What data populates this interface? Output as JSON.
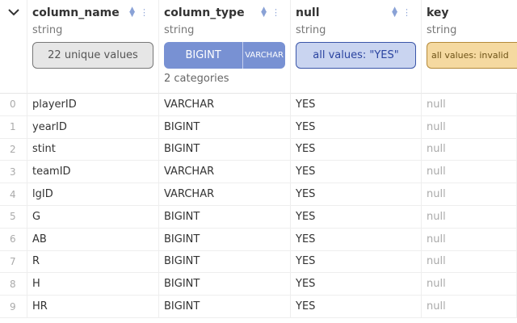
{
  "columns": [
    {
      "name": "column_name",
      "type": "string",
      "summary": "22 unique values"
    },
    {
      "name": "column_type",
      "type": "string",
      "summary_segments": [
        "BIGINT",
        "VARCHAR"
      ],
      "summary_sub": "2 categories"
    },
    {
      "name": "null",
      "type": "string",
      "summary": "all values: \"YES\""
    },
    {
      "name": "key",
      "type": "string",
      "summary": "all values: invalid"
    }
  ],
  "rows": [
    [
      "0",
      "playerID",
      "VARCHAR",
      "YES",
      "null"
    ],
    [
      "1",
      "yearID",
      "BIGINT",
      "YES",
      "null"
    ],
    [
      "2",
      "stint",
      "BIGINT",
      "YES",
      "null"
    ],
    [
      "3",
      "teamID",
      "VARCHAR",
      "YES",
      "null"
    ],
    [
      "4",
      "lgID",
      "VARCHAR",
      "YES",
      "null"
    ],
    [
      "5",
      "G",
      "BIGINT",
      "YES",
      "null"
    ],
    [
      "6",
      "AB",
      "BIGINT",
      "YES",
      "null"
    ],
    [
      "7",
      "R",
      "BIGINT",
      "YES",
      "null"
    ],
    [
      "8",
      "H",
      "BIGINT",
      "YES",
      "null"
    ],
    [
      "9",
      "HR",
      "BIGINT",
      "YES",
      "null"
    ]
  ],
  "colors": {
    "bar": "#7891d3",
    "blue_pill": "#c9d4f0",
    "orange_pill": "#f5d9a0"
  }
}
